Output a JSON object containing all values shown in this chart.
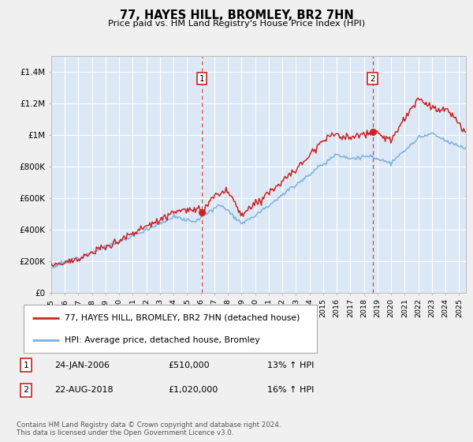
{
  "title": "77, HAYES HILL, BROMLEY, BR2 7HN",
  "subtitle": "Price paid vs. HM Land Registry's House Price Index (HPI)",
  "background_color": "#dce8f5",
  "outer_bg_color": "#f0f0f0",
  "ylim": [
    0,
    1500000
  ],
  "yticks": [
    0,
    200000,
    400000,
    600000,
    800000,
    1000000,
    1200000,
    1400000
  ],
  "ytick_labels": [
    "£0",
    "£200K",
    "£400K",
    "£600K",
    "£800K",
    "£1M",
    "£1.2M",
    "£1.4M"
  ],
  "sale1_x": 2006.07,
  "sale1_price": 510000,
  "sale2_x": 2018.64,
  "sale2_price": 1020000,
  "legend_line1": "77, HAYES HILL, BROMLEY, BR2 7HN (detached house)",
  "legend_line2": "HPI: Average price, detached house, Bromley",
  "table_row1": [
    "1",
    "24-JAN-2006",
    "£510,000",
    "13% ↑ HPI"
  ],
  "table_row2": [
    "2",
    "22-AUG-2018",
    "£1,020,000",
    "16% ↑ HPI"
  ],
  "footer": "Contains HM Land Registry data © Crown copyright and database right 2024.\nThis data is licensed under the Open Government Licence v3.0.",
  "red_color": "#cc2222",
  "blue_color": "#7ab0de"
}
